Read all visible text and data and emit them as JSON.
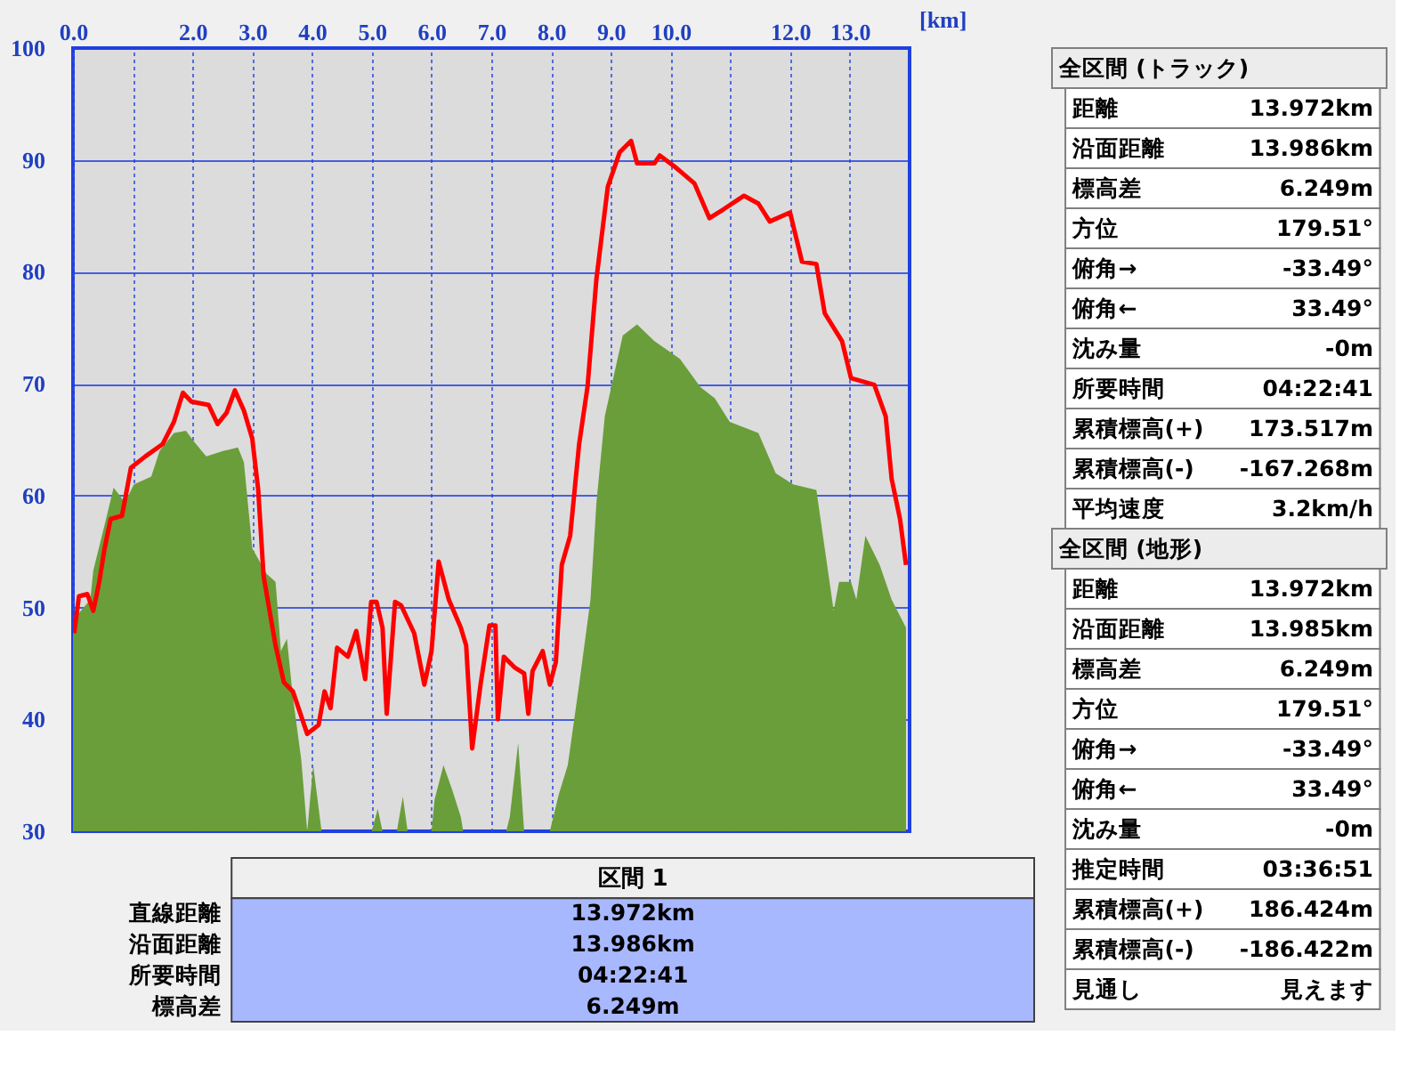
{
  "chart_data": {
    "type": "area",
    "xlabel": "[km]",
    "xlim": [
      0,
      14
    ],
    "xticks": [
      {
        "value": 0,
        "label": "0.0"
      },
      {
        "value": 1,
        "label": null
      },
      {
        "value": 2,
        "label": "2.0"
      },
      {
        "value": 3,
        "label": "3.0"
      },
      {
        "value": 4,
        "label": "4.0"
      },
      {
        "value": 5,
        "label": "5.0"
      },
      {
        "value": 6,
        "label": "6.0"
      },
      {
        "value": 7,
        "label": "7.0"
      },
      {
        "value": 8,
        "label": "8.0"
      },
      {
        "value": 9,
        "label": "9.0"
      },
      {
        "value": 10,
        "label": "10.0"
      },
      {
        "value": 11,
        "label": null
      },
      {
        "value": 12,
        "label": "12.0"
      },
      {
        "value": 13,
        "label": "13.0"
      }
    ],
    "ylim": [
      30,
      100
    ],
    "yticks": [
      30,
      40,
      50,
      60,
      70,
      80,
      90,
      100
    ],
    "grid": true,
    "series": [
      {
        "color": "#6a9e3a",
        "x": [
          0,
          0.05,
          0.29,
          0.34,
          0.53,
          0.68,
          0.87,
          1.02,
          1.31,
          1.45,
          1.69,
          1.89,
          2.03,
          2.23,
          2.52,
          2.76,
          2.86,
          3.0,
          3.24,
          3.39,
          3.48,
          3.58,
          3.68,
          3.82,
          3.92,
          4.02,
          4.16,
          5.0,
          5.1,
          5.18,
          5.42,
          5.52,
          5.6,
          6.0,
          6.05,
          6.2,
          6.34,
          6.49,
          6.53,
          7.25,
          7.31,
          7.45,
          7.55,
          7.98,
          8.13,
          8.28,
          8.47,
          8.66,
          8.76,
          8.9,
          9.05,
          9.2,
          9.44,
          9.73,
          10.16,
          10.5,
          10.74,
          10.99,
          11.47,
          11.76,
          12.05,
          12.44,
          12.58,
          12.73,
          12.82,
          13.02,
          13.11,
          13.26,
          13.5,
          13.7,
          13.94
        ],
        "values": [
          47.7,
          49.2,
          50.7,
          53.3,
          57.4,
          60.7,
          59.4,
          61.0,
          61.7,
          64.0,
          65.6,
          65.8,
          64.8,
          63.5,
          64.0,
          64.3,
          63.0,
          55.3,
          53.0,
          52.3,
          46.1,
          47.2,
          42.0,
          36.4,
          30,
          35.9,
          30,
          30,
          32.0,
          30,
          30,
          33.1,
          30,
          30,
          32.8,
          35.9,
          33.8,
          31.3,
          30,
          30,
          31.3,
          37.9,
          30,
          30,
          33.3,
          35.9,
          43.1,
          50.7,
          59.4,
          67.1,
          70.7,
          74.3,
          75.3,
          73.8,
          72.2,
          69.7,
          68.7,
          66.6,
          65.6,
          62.0,
          61.0,
          60.5,
          55.3,
          49.7,
          52.3,
          52.3,
          50.7,
          56.4,
          53.8,
          50.7,
          48.2
        ]
      },
      {
        "type": "line",
        "color": "#ff0000",
        "line_style": "solid",
        "x": [
          0.02,
          0.1,
          0.24,
          0.34,
          0.44,
          0.53,
          0.63,
          0.82,
          0.97,
          1.21,
          1.5,
          1.69,
          1.84,
          1.98,
          2.27,
          2.42,
          2.57,
          2.71,
          2.86,
          3.0,
          3.1,
          3.19,
          3.39,
          3.53,
          3.68,
          3.92,
          4.11,
          4.21,
          4.31,
          4.42,
          4.6,
          4.74,
          4.89,
          4.99,
          5.08,
          5.18,
          5.25,
          5.39,
          5.49,
          5.71,
          5.88,
          6.0,
          6.12,
          6.29,
          6.49,
          6.58,
          6.68,
          6.82,
          6.97,
          7.07,
          7.11,
          7.21,
          7.4,
          7.55,
          7.62,
          7.69,
          7.86,
          7.98,
          8.08,
          8.18,
          8.32,
          8.47,
          8.61,
          8.76,
          8.95,
          9.15,
          9.34,
          9.44,
          9.73,
          9.82,
          10.07,
          10.4,
          10.65,
          10.89,
          11.23,
          11.47,
          11.66,
          12.0,
          12.2,
          12.44,
          12.58,
          12.87,
          13.02,
          13.41,
          13.6,
          13.7,
          13.84,
          13.94
        ],
        "values": [
          47.7,
          51.0,
          51.2,
          49.7,
          52.3,
          55.3,
          57.9,
          58.2,
          62.5,
          63.5,
          64.6,
          66.6,
          69.2,
          68.4,
          68.1,
          66.4,
          67.4,
          69.4,
          67.6,
          65.1,
          60.5,
          52.8,
          46.6,
          43.3,
          42.5,
          38.7,
          39.5,
          42.5,
          41.0,
          46.4,
          45.6,
          47.9,
          43.6,
          50.5,
          50.5,
          48.2,
          40.5,
          50.5,
          50.2,
          47.7,
          43.1,
          46.1,
          54.1,
          50.7,
          48.2,
          46.6,
          37.4,
          43.1,
          48.4,
          48.4,
          40.0,
          45.6,
          44.6,
          44.1,
          40.5,
          44.3,
          46.1,
          43.1,
          45.1,
          53.8,
          56.4,
          64.6,
          69.7,
          79.4,
          87.6,
          90.7,
          91.7,
          89.7,
          89.7,
          90.4,
          89.4,
          87.9,
          84.8,
          85.6,
          86.8,
          86.1,
          84.5,
          85.3,
          80.9,
          80.7,
          76.3,
          73.8,
          70.5,
          69.9,
          67.1,
          61.5,
          57.9,
          53.8
        ]
      }
    ],
    "annotations": [
      "全区間 (トラック)",
      "距離\t13.972km",
      "沿面距離\t13.986km",
      "標高差\t6.249m",
      "方位\t179.51°",
      "俯角→\t-33.49°",
      "俯角←\t33.49°",
      "沈み量\t-0m",
      "所要時間\t04:22:41",
      "累積標高(+)\t173.517m",
      "累積標高(-)\t-167.268m",
      "平均速度\t3.2km/h",
      "全区間 (地形)",
      "距離\t13.972km",
      "沿面距離\t13.985km",
      "標高差\t6.249m",
      "方位\t179.51°",
      "俯角→\t-33.49°",
      "俯角←\t33.49°",
      "沈み量\t-0m",
      "推定時間\t03:36:51",
      "累積標高(+)\t186.424m",
      "累積標高(-)\t-186.422m",
      "見通し\t見えます",
      "区間 1",
      "直線距離\t13.972km",
      "沿面距離\t13.986km",
      "所要時間\t04:22:41",
      "標高差\t6.249m"
    ]
  }
}
